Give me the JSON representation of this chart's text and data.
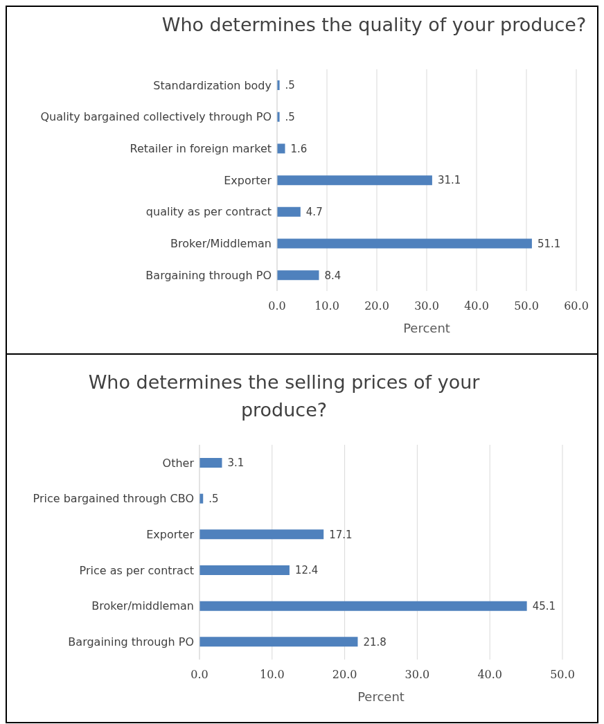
{
  "chart_data": [
    {
      "type": "bar",
      "orientation": "horizontal",
      "title": "Who determines the quality of your produce?",
      "xlabel": "Percent",
      "categories": [
        "Standardization body",
        "Quality bargained collectively through PO",
        "Retailer in foreign market",
        "Exporter",
        "quality as per contract",
        "Broker/Middleman",
        "Bargaining through PO"
      ],
      "values": [
        0.5,
        0.5,
        1.6,
        31.1,
        4.7,
        51.1,
        8.4
      ],
      "value_labels": [
        ".5",
        ".5",
        "1.6",
        "31.1",
        "4.7",
        "51.1",
        "8.4"
      ],
      "color": "#4f81bd",
      "xlim": [
        0,
        60
      ],
      "xticks": [
        {
          "value": 0,
          "label": "0.0"
        },
        {
          "value": 10,
          "label": "10.0"
        },
        {
          "value": 20,
          "label": "20.0"
        },
        {
          "value": 30,
          "label": "30.0"
        },
        {
          "value": 40,
          "label": "40.0"
        },
        {
          "value": 50,
          "label": "50.0"
        },
        {
          "value": 60,
          "label": "60.0"
        }
      ],
      "grid": "x"
    },
    {
      "type": "bar",
      "orientation": "horizontal",
      "title": "Who determines the  selling prices of your produce?",
      "xlabel": "Percent",
      "categories": [
        "Other",
        "Price bargained through CBO",
        "Exporter",
        "Price as per contract",
        "Broker/middleman",
        "Bargaining through PO"
      ],
      "values": [
        3.1,
        0.5,
        17.1,
        12.4,
        45.1,
        21.8
      ],
      "value_labels": [
        "3.1",
        ".5",
        "17.1",
        "12.4",
        "45.1",
        "21.8"
      ],
      "color": "#4f81bd",
      "xlim": [
        0,
        50
      ],
      "xticks": [
        {
          "value": 0,
          "label": "0.0"
        },
        {
          "value": 10,
          "label": "10.0"
        },
        {
          "value": 20,
          "label": "20.0"
        },
        {
          "value": 30,
          "label": "30.0"
        },
        {
          "value": 40,
          "label": "40.0"
        },
        {
          "value": 50,
          "label": "50.0"
        }
      ],
      "grid": "x"
    }
  ]
}
